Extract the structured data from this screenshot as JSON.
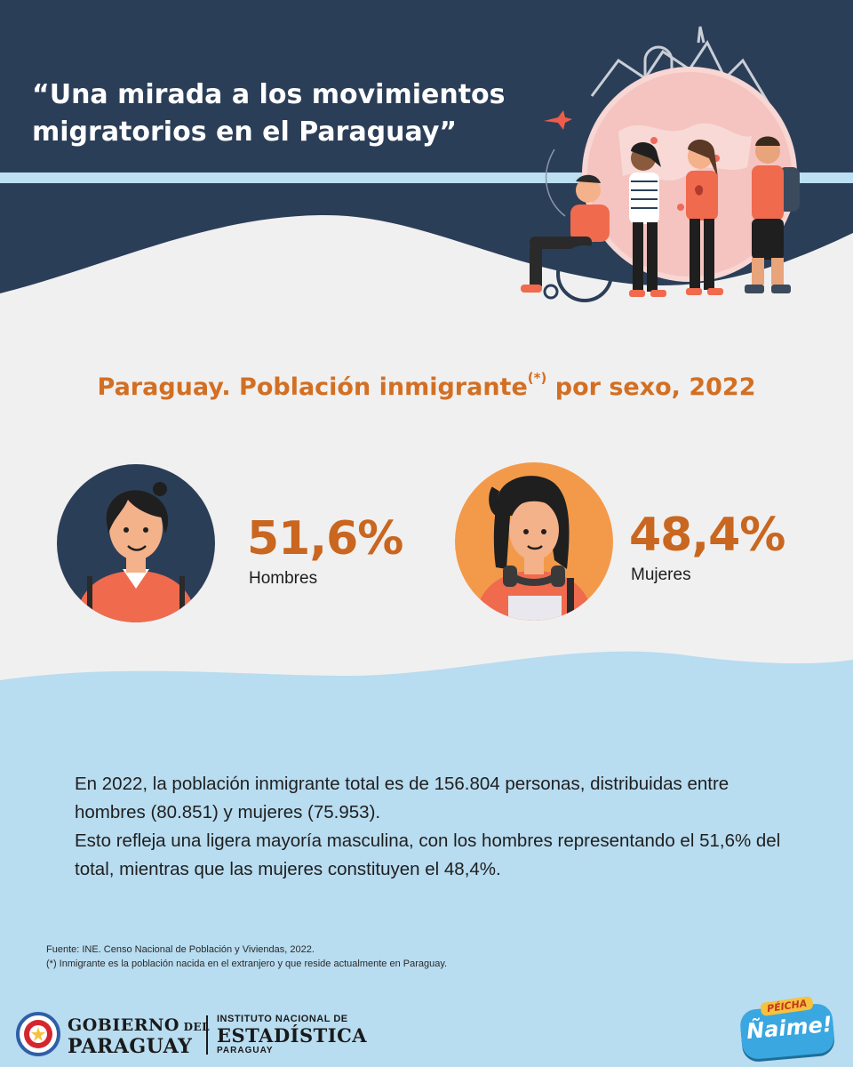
{
  "header": {
    "title": "“Una mirada a los movimientos migratorios en el Paraguay”"
  },
  "chart_data": {
    "type": "table",
    "title": "Paraguay. Población inmigrante",
    "title_mark": "(*)",
    "title_suffix": " por sexo, 2022",
    "categories": [
      "Hombres",
      "Mujeres"
    ],
    "values": [
      51.6,
      48.4
    ],
    "value_labels": [
      "51,6%",
      "48,4%"
    ]
  },
  "summary": {
    "line1": "En 2022, la población inmigrante total es de 156.804 personas, distribuidas entre hombres (80.851) y mujeres (75.953).",
    "line2": "Esto refleja una ligera mayoría masculina, con los hombres representando el 51,6% del total, mientras que las mujeres constituyen el 48,4%."
  },
  "source": {
    "line1": "Fuente: INE. Censo Nacional de Población y Viviendas, 2022.",
    "line2": "(*) Inmigrante es la población nacida en el extranjero y que reside actualmente en Paraguay."
  },
  "footer": {
    "gobierno_l1": "GOBIERNO",
    "gobierno_del": " DEL",
    "gobierno_l2": "PARAGUAY",
    "ine_l1": "INSTITUTO NACIONAL DE",
    "ine_l2": "ESTADÍSTICA",
    "ine_l3": "PARAGUAY",
    "badge_top": "PÉICHA",
    "badge_main": "Ñaime!"
  },
  "colors": {
    "navy": "#2b3e58",
    "light_blue": "#b8dcf0",
    "orange_text": "#c9661f",
    "avatar_orange": "#f39a4a",
    "shirt_coral": "#f06a4e"
  },
  "icons": {
    "hero": "migrants-illustration",
    "male": "man-avatar-icon",
    "female": "woman-avatar-icon",
    "seal": "paraguay-seal-icon"
  }
}
